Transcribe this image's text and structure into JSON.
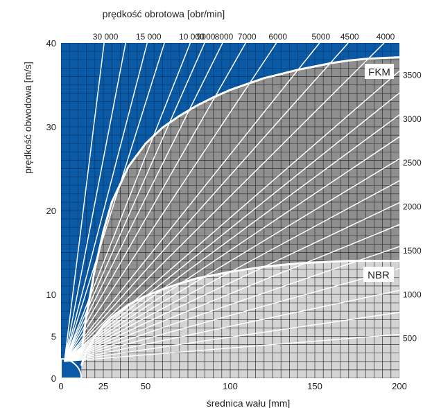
{
  "chart_data": {
    "type": "area",
    "top_label": "prędkość obrotowa [obr/min]",
    "xlabel": "średnica wału [mm]",
    "ylabel": "prędkość obwodowa [m/s]",
    "xlim": [
      0,
      200
    ],
    "ylim": [
      0,
      40
    ],
    "x_ticks": [
      0,
      25,
      50,
      100,
      150,
      200
    ],
    "y_ticks": [
      0,
      5,
      10,
      20,
      30,
      40
    ],
    "grid": true,
    "colors": {
      "background": "#0a5aa6",
      "fkm": "#8f8f8f",
      "nbr": "#d4d4d4",
      "grid_blue": "#06396d",
      "grid_gray": "#2e2e2e",
      "lines": "#ffffff"
    },
    "series": [
      {
        "name": "FKM",
        "x": [
          12,
          15,
          20,
          25,
          30,
          40,
          50,
          60,
          70,
          80,
          90,
          100,
          110,
          120,
          130,
          140,
          150,
          160,
          170,
          180,
          190,
          200
        ],
        "y": [
          3.0,
          7.5,
          13.0,
          17.5,
          21.0,
          25.3,
          28.0,
          29.9,
          31.3,
          32.5,
          33.5,
          34.4,
          35.1,
          35.8,
          36.3,
          36.8,
          37.2,
          37.6,
          37.9,
          38.1,
          38.2,
          38.3
        ]
      },
      {
        "name": "NBR",
        "x": [
          12,
          15,
          20,
          25,
          30,
          40,
          50,
          60,
          70,
          80,
          90,
          100,
          110,
          120,
          130,
          140,
          150,
          160,
          170,
          180,
          190,
          200
        ],
        "y": [
          1.5,
          3.2,
          5.0,
          6.3,
          7.3,
          8.8,
          9.8,
          10.6,
          11.3,
          11.9,
          12.3,
          12.7,
          13.0,
          13.3,
          13.5,
          13.7,
          13.8,
          13.9,
          14.0,
          14.0,
          14.0,
          14.0
        ]
      }
    ],
    "speed_lines_top": [
      {
        "label": "30 000",
        "rpm": 30000
      },
      {
        "label": "15 000",
        "rpm": 15000
      },
      {
        "label": "10 000",
        "rpm": 10000
      },
      {
        "label": "9000",
        "rpm": 9000
      },
      {
        "label": "8000",
        "rpm": 8000
      },
      {
        "label": "7000",
        "rpm": 7000
      },
      {
        "label": "6000",
        "rpm": 6000
      },
      {
        "label": "5000",
        "rpm": 5000
      },
      {
        "label": "4500",
        "rpm": 4500
      },
      {
        "label": "4000",
        "rpm": 4000
      }
    ],
    "speed_lines_right": [
      {
        "label": "3500",
        "rpm": 3500
      },
      {
        "label": "3000",
        "rpm": 3000
      },
      {
        "label": "2500",
        "rpm": 2500
      },
      {
        "label": "2000",
        "rpm": 2000
      },
      {
        "label": "1500",
        "rpm": 1500
      },
      {
        "label": "1000",
        "rpm": 1000
      },
      {
        "label": "500",
        "rpm": 500
      }
    ],
    "unlabeled_speed_lines_rpm": [
      20000,
      12500,
      3250,
      2750,
      2250,
      1750,
      1250,
      750
    ]
  }
}
